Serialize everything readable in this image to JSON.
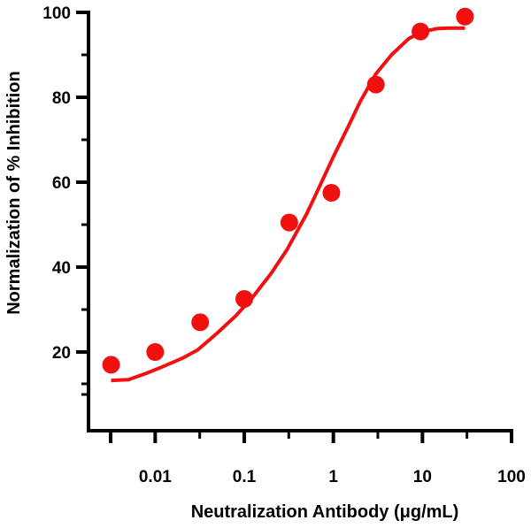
{
  "chart_data": {
    "type": "scatter",
    "title": "",
    "xlabel": "Neutralization Antibody (μg/mL)",
    "ylabel": "Normalization of % Inhibition",
    "xscale": "log",
    "xlim": [
      0.002,
      100
    ],
    "ylim": [
      5,
      100
    ],
    "xticks": [
      0.01,
      0.1,
      1,
      10,
      100
    ],
    "xtick_labels": [
      "0.01",
      "0.1",
      "1",
      "10",
      "100"
    ],
    "yticks": [
      20,
      40,
      60,
      80,
      100
    ],
    "ytick_labels": [
      "20",
      "40",
      "60",
      "80",
      "100"
    ],
    "grid": false,
    "legend": "none",
    "colors": {
      "series": "#f01010",
      "axis": "#000000"
    },
    "series": [
      {
        "kind": "points",
        "x": [
          0.0032,
          0.01,
          0.032,
          0.1,
          0.32,
          0.95,
          3.0,
          9.5,
          30
        ],
        "y": [
          17,
          20,
          27,
          32.5,
          50.5,
          57.5,
          83,
          95.5,
          99
        ]
      },
      {
        "kind": "fit-curve",
        "x": [
          0.0032,
          0.005,
          0.008,
          0.012,
          0.02,
          0.03,
          0.05,
          0.08,
          0.12,
          0.2,
          0.3,
          0.5,
          0.7,
          1.0,
          1.5,
          2.0,
          3.0,
          4.5,
          7.0,
          10,
          15,
          20,
          30
        ],
        "y": [
          13.3,
          13.5,
          15,
          16.5,
          18.5,
          20.5,
          24.5,
          28.5,
          32.5,
          38.5,
          44,
          52.5,
          59,
          66,
          73.5,
          79,
          85.5,
          90,
          93.8,
          95.5,
          96.2,
          96.3,
          96.3
        ]
      }
    ]
  }
}
